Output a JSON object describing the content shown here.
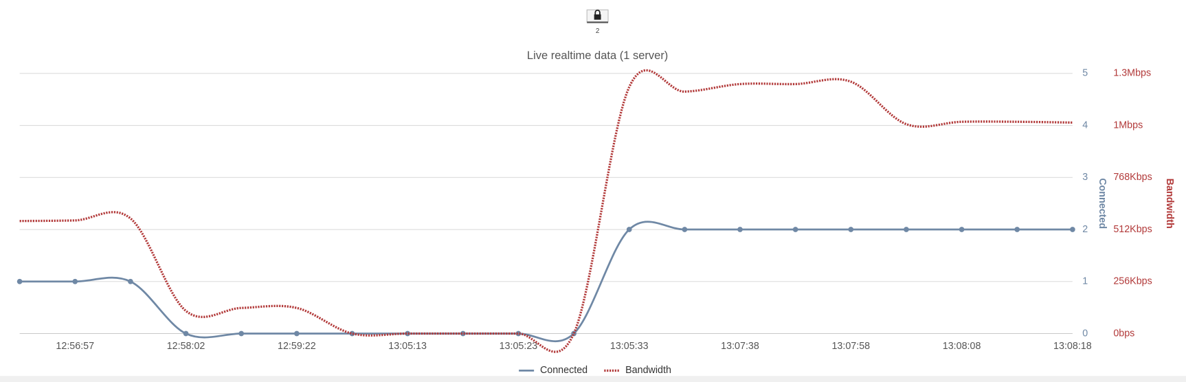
{
  "lock_badge": "2",
  "chart_data": {
    "type": "line",
    "title": "Live realtime data (1 server)",
    "categories": [
      null,
      "12:56:57",
      null,
      "12:58:02",
      null,
      "12:59:22",
      null,
      "13:05:13",
      null,
      "13:05:23",
      null,
      "13:05:33",
      null,
      "13:07:38",
      null,
      "13:07:58",
      null,
      "13:08:08",
      null,
      "13:08:18"
    ],
    "y_label": "Connected",
    "y2_label": "Bandwidth",
    "ylim": [
      0,
      5
    ],
    "yticks": [
      0,
      1,
      2,
      3,
      4,
      5
    ],
    "y2lim": [
      0,
      1310720
    ],
    "y2ticks": [
      {
        "value": 0,
        "label": "0bps"
      },
      {
        "value": 262144,
        "label": "256Kbps"
      },
      {
        "value": 524288,
        "label": "512Kbps"
      },
      {
        "value": 786432,
        "label": "768Kbps"
      },
      {
        "value": 1048576,
        "label": "1Mbps"
      },
      {
        "value": 1310720,
        "label": "1.3Mbps"
      }
    ],
    "grid": true,
    "series": [
      {
        "name": "Connected",
        "color": "#6f88a5",
        "values": [
          1,
          1,
          1,
          0,
          0,
          0,
          0,
          0,
          0,
          0,
          0,
          2,
          2,
          2,
          2,
          2,
          2,
          2,
          2,
          2
        ]
      },
      {
        "name": "Bandwidth",
        "color": "#b23a3a",
        "axis": "y2",
        "values": [
          567000,
          570000,
          580000,
          114000,
          129000,
          129000,
          0,
          0,
          0,
          0,
          0,
          1242000,
          1219000,
          1257000,
          1257000,
          1269000,
          1055000,
          1067000,
          1067000,
          1063000
        ]
      }
    ]
  }
}
